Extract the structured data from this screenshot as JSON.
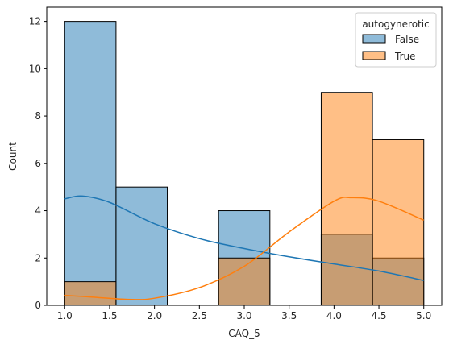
{
  "chart_data": {
    "type": "histogram",
    "xlabel": "CAQ_5",
    "ylabel": "Count",
    "xlim": [
      0.8,
      5.2
    ],
    "ylim": [
      0,
      12.6
    ],
    "xticks": [
      "1.0",
      "1.5",
      "2.0",
      "2.5",
      "3.0",
      "3.5",
      "4.0",
      "4.5",
      "5.0"
    ],
    "yticks": [
      "0",
      "2",
      "4",
      "6",
      "8",
      "10",
      "12"
    ],
    "bin_edges": [
      1.0,
      1.5714,
      2.1429,
      2.7143,
      3.2857,
      3.8571,
      4.4286,
      5.0
    ],
    "series": [
      {
        "name": "False",
        "color": "#1f77b4",
        "counts": [
          12,
          5,
          0,
          4,
          0,
          3,
          2
        ],
        "kde": [
          [
            1.0,
            4.5
          ],
          [
            1.2,
            4.62
          ],
          [
            1.5,
            4.35
          ],
          [
            2.0,
            3.45
          ],
          [
            2.5,
            2.82
          ],
          [
            3.0,
            2.4
          ],
          [
            3.5,
            2.05
          ],
          [
            4.0,
            1.75
          ],
          [
            4.5,
            1.45
          ],
          [
            5.0,
            1.05
          ]
        ]
      },
      {
        "name": "True",
        "color": "#ff7f0e",
        "counts": [
          1,
          0,
          0,
          2,
          0,
          9,
          7
        ],
        "kde": [
          [
            1.0,
            0.42
          ],
          [
            1.3,
            0.35
          ],
          [
            1.7,
            0.25
          ],
          [
            2.0,
            0.3
          ],
          [
            2.5,
            0.75
          ],
          [
            3.0,
            1.65
          ],
          [
            3.5,
            3.1
          ],
          [
            4.0,
            4.4
          ],
          [
            4.2,
            4.55
          ],
          [
            4.5,
            4.4
          ],
          [
            5.0,
            3.6
          ]
        ]
      }
    ],
    "legend": {
      "title": "autogynerotic",
      "position": "top-right"
    }
  }
}
